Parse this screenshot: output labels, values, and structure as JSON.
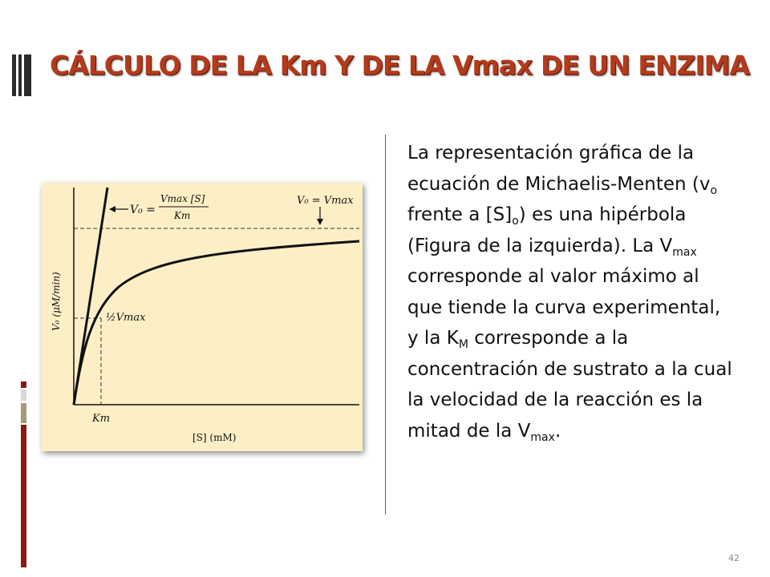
{
  "title": "CÁLCULO DE LA Km Y DE LA Vmax DE UN ENZIMA",
  "paragraph": {
    "p1": "La representación gráfica de la ecuación de Michaelis-Menten (v",
    "sub1": "o",
    "p2": " frente a [S]",
    "sub2": "o",
    "p3": ") es una hipérbola (Figura de la izquierda). La V",
    "sub3": "max",
    "p4": " corresponde al valor máximo al que tiende la curva experimental, y la K",
    "sub4": "M",
    "p5": " corresponde a la concentración de sustrato a la cual la velocidad de la reacción es la mitad de la V",
    "sub5": "max",
    "p6": "."
  },
  "page_number": "42",
  "figure": {
    "ylabel": "V₀ (μM/min)",
    "xlabel": "[S] (mM)",
    "km_label": "Km",
    "half_vmax_label": "½Vmax",
    "asymptote_label": "V₀ = Vmax",
    "slope_label_lhs": "V₀ =",
    "slope_num": "Vmax [S]",
    "slope_den": "Km"
  },
  "colors": {
    "title": "#b33a1b",
    "figure_bg": "#fcefc6",
    "bar_red": "#8b1a10",
    "bar_tan": "#a79a78"
  }
}
